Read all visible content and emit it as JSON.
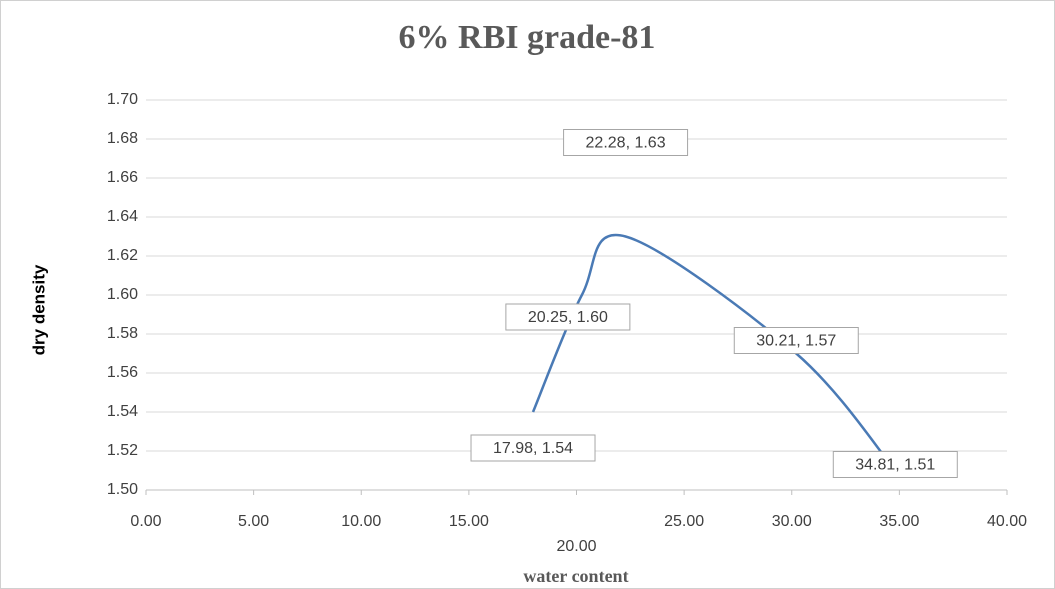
{
  "chart_data": {
    "type": "line",
    "title": "6% RBI grade-81",
    "x_label": "water content",
    "y_label": "dry density",
    "series": [
      {
        "color": "#4a7ab5",
        "x": [
          17.98,
          20.25,
          22.28,
          30.21,
          34.81
        ],
        "values": [
          1.54,
          1.6,
          1.63,
          1.57,
          1.51
        ],
        "value_labels": [
          "17.98, 1.54",
          "20.25, 1.60",
          "22.28, 1.63",
          "30.21, 1.57",
          "34.81, 1.51"
        ]
      }
    ],
    "xlim": [
      0,
      40
    ],
    "xticks": [
      {
        "value": 0,
        "label": "0.00"
      },
      {
        "value": 5,
        "label": "5.00"
      },
      {
        "value": 10,
        "label": "10.00"
      },
      {
        "value": 15,
        "label": "15.00"
      },
      {
        "value": 20,
        "label": "20.00"
      },
      {
        "value": 25,
        "label": "25.00"
      },
      {
        "value": 30,
        "label": "30.00"
      },
      {
        "value": 35,
        "label": "35.00"
      },
      {
        "value": 40,
        "label": "40.00"
      }
    ],
    "ylim": [
      1.5,
      1.7
    ],
    "yticks": [
      {
        "value": 1.5,
        "label": "1.50"
      },
      1.52,
      1.54,
      1.56,
      1.58,
      {
        "value": 1.6,
        "label": "1.60"
      },
      1.62,
      1.64,
      1.66,
      1.68,
      {
        "value": 1.7,
        "label": "1.70"
      }
    ],
    "grid": true
  }
}
